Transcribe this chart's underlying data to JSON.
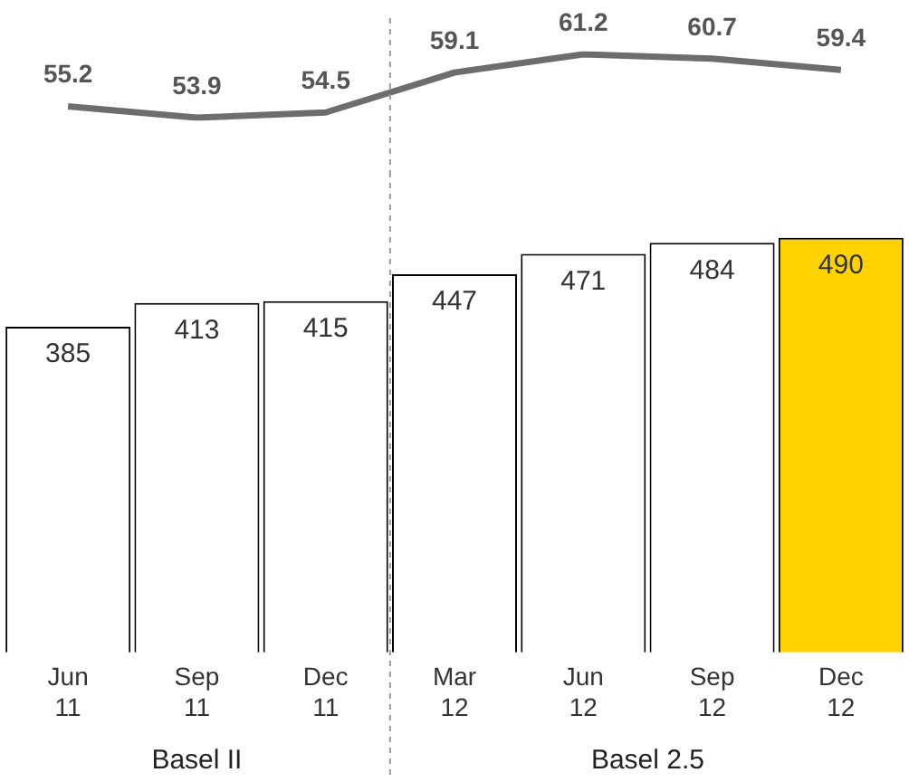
{
  "chart_data": [
    {
      "type": "line",
      "categories": [
        null,
        null,
        null,
        null,
        null,
        null,
        null
      ],
      "tick_labels": false,
      "series": [
        {
          "color": "#6d6d6d",
          "values": [
            55.2,
            53.9,
            54.5,
            59.1,
            61.2,
            60.7,
            59.4
          ]
        }
      ],
      "data_labels": true,
      "legend": false,
      "grid": false,
      "marker": "none"
    },
    {
      "type": "bar",
      "categories": [
        "Jun 11",
        "Sep 11",
        "Dec 11",
        "Mar 12",
        "Jun 12",
        "Sep 12",
        "Dec 12"
      ],
      "series": [
        {
          "colors": [
            "#ffffff",
            "#ffffff",
            "#ffffff",
            "#ffffff",
            "#ffffff",
            "#ffffff",
            "#ffd200"
          ],
          "values": [
            385,
            413,
            415,
            447,
            471,
            484,
            490
          ]
        }
      ],
      "data_labels": true,
      "legend": false,
      "grid": false,
      "annotations": [
        "Basel II",
        "Basel 2.5"
      ]
    }
  ]
}
